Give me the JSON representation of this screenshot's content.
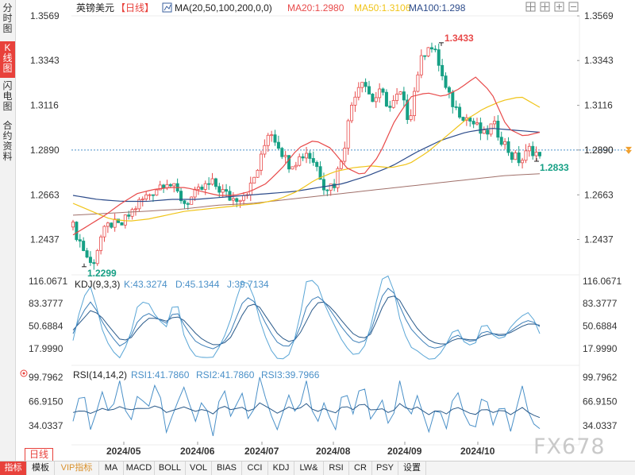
{
  "side_tabs": [
    {
      "label": "分时图",
      "active": false
    },
    {
      "label": "K线图",
      "active": true
    },
    {
      "label": "闪电图",
      "active": false
    },
    {
      "label": "合约资料",
      "active": false
    }
  ],
  "header": {
    "symbol": "英镑美元",
    "period_tag": "【日线】",
    "ma_label": "MA(20,50,100,200,0,0)",
    "ma20": "MA20:1.2980",
    "ma50": "MA50:1.3106",
    "ma100": "MA100:1.298",
    "ma20_color": "#e84a4a",
    "ma50_color": "#f0c419",
    "ma100_color": "#2c4b8a"
  },
  "kdj": {
    "label": "KDJ(9,3,3)",
    "k": "K:43.3274",
    "d": "D:45.1344",
    "j": "J:39.7134"
  },
  "rsi": {
    "label": "RSI(14,14,2)",
    "r1": "RSI1:41.7860",
    "r2": "RSI2:41.7860",
    "r3": "RSI3:39.7966"
  },
  "period_button": "日线",
  "watermark": "FX678",
  "bottom_buttons": [
    "指标",
    "模板",
    "VIP指标",
    "MA",
    "MACD",
    "BOLL",
    "VOL",
    "BIAS",
    "CCI",
    "KDJ",
    "LW&",
    "RSI",
    "CR",
    "PSY",
    "设置"
  ],
  "chart_data": {
    "type": "candlestick",
    "x_tick_labels": [
      "2024/05",
      "2024/06",
      "2024/07",
      "2024/08",
      "2024/09",
      "2024/10"
    ],
    "price_axis": {
      "ticks": [
        "1.3569",
        "1.3343",
        "1.3116",
        "1.2890",
        "1.2663",
        "1.2437"
      ],
      "ylim": [
        1.2258,
        1.3569
      ]
    },
    "current_price": "1.2890",
    "annotations": {
      "high": "1.3433",
      "low": "1.2299",
      "last_low": "1.2833"
    },
    "kdj_axis": {
      "ticks": [
        "116.0671",
        "83.3777",
        "50.6884",
        "17.9990"
      ],
      "ylim": [
        -6,
        125
      ]
    },
    "rsi_axis": {
      "ticks": [
        "99.7962",
        "66.9150",
        "34.0337"
      ],
      "ylim": [
        8,
        116
      ]
    },
    "up_color": "#e84a4a",
    "down_color": "#16a085",
    "price_path": [
      1.25,
      1.24,
      1.2299,
      1.245,
      1.252,
      1.25,
      1.256,
      1.262,
      1.266,
      1.27,
      1.274,
      1.268,
      1.262,
      1.266,
      1.27,
      1.272,
      1.268,
      1.264,
      1.266,
      1.27,
      1.282,
      1.3,
      1.292,
      1.282,
      1.284,
      1.288,
      1.282,
      1.27,
      1.272,
      1.29,
      1.316,
      1.326,
      1.314,
      1.318,
      1.31,
      1.318,
      1.304,
      1.33,
      1.3433,
      1.336,
      1.318,
      1.31,
      1.306,
      1.302,
      1.296,
      1.302,
      1.294,
      1.286,
      1.2833,
      1.29,
      1.286
    ],
    "ma20_path": [
      1.246,
      1.251,
      1.256,
      1.262,
      1.267,
      1.269,
      1.27,
      1.27,
      1.268,
      1.266,
      1.266,
      1.268,
      1.272,
      1.28,
      1.29,
      1.294,
      1.29,
      1.28,
      1.276,
      1.286,
      1.304,
      1.316,
      1.318,
      1.316,
      1.32,
      1.326,
      1.318,
      1.3,
      1.296,
      1.298
    ],
    "ma50_path": [
      1.262,
      1.258,
      1.254,
      1.253,
      1.254,
      1.256,
      1.258,
      1.259,
      1.26,
      1.261,
      1.262,
      1.264,
      1.268,
      1.274,
      1.278,
      1.28,
      1.281,
      1.28,
      1.282,
      1.288,
      1.296,
      1.304,
      1.31,
      1.314,
      1.316,
      1.3106
    ],
    "ma100_path": [
      1.266,
      1.264,
      1.263,
      1.263,
      1.264,
      1.264,
      1.265,
      1.266,
      1.267,
      1.268,
      1.27,
      1.272,
      1.276,
      1.281,
      1.288,
      1.294,
      1.298,
      1.3,
      1.299,
      1.298
    ],
    "ma200_path": [
      1.256,
      1.257,
      1.258,
      1.259,
      1.261,
      1.262,
      1.264,
      1.266,
      1.268,
      1.27,
      1.272,
      1.274,
      1.276,
      1.277
    ],
    "kdj_k": [
      40,
      70,
      88,
      60,
      38,
      22,
      30,
      60,
      70,
      62,
      55,
      75,
      50,
      30,
      22,
      18,
      25,
      45,
      82,
      95,
      72,
      45,
      25,
      20,
      35,
      78,
      96,
      85,
      65,
      45,
      30,
      25,
      45,
      92,
      110,
      80,
      50,
      35,
      22,
      18,
      25,
      40,
      30,
      28,
      45,
      40,
      35,
      45,
      55,
      60,
      50
    ],
    "kdj_d": [
      45,
      60,
      75,
      65,
      48,
      32,
      30,
      48,
      62,
      62,
      58,
      66,
      58,
      42,
      30,
      24,
      24,
      36,
      64,
      85,
      78,
      58,
      38,
      28,
      32,
      58,
      84,
      86,
      72,
      55,
      40,
      32,
      40,
      75,
      98,
      88,
      65,
      45,
      32,
      25,
      25,
      33,
      32,
      30,
      38,
      40,
      38,
      42,
      50,
      55,
      52
    ],
    "kdj_j": [
      30,
      90,
      110,
      50,
      18,
      5,
      30,
      85,
      86,
      62,
      50,
      95,
      30,
      8,
      5,
      6,
      28,
      65,
      115,
      112,
      60,
      20,
      2,
      5,
      42,
      115,
      118,
      80,
      52,
      25,
      10,
      12,
      55,
      118,
      125,
      62,
      22,
      14,
      3,
      4,
      25,
      52,
      25,
      22,
      60,
      38,
      30,
      52,
      65,
      72,
      40
    ],
    "rsi_fast": [
      40,
      90,
      20,
      85,
      45,
      95,
      30,
      80,
      55,
      100,
      25,
      60,
      90,
      35,
      75,
      20,
      95,
      40,
      85,
      30,
      100,
      55,
      25,
      80,
      45,
      95,
      30,
      70,
      20,
      90,
      50,
      100,
      35,
      75,
      25,
      95,
      40,
      80,
      20,
      65,
      30,
      90,
      45,
      25,
      85,
      35,
      70,
      20,
      95,
      40,
      30
    ],
    "rsi_slow": [
      52,
      55,
      50,
      58,
      54,
      60,
      55,
      58,
      57,
      62,
      52,
      56,
      60,
      53,
      57,
      50,
      62,
      55,
      60,
      52,
      65,
      58,
      50,
      60,
      55,
      64,
      52,
      58,
      50,
      62,
      56,
      66,
      54,
      58,
      50,
      64,
      55,
      60,
      48,
      56,
      50,
      60,
      54,
      48,
      58,
      52,
      56,
      48,
      60,
      50,
      45
    ]
  }
}
